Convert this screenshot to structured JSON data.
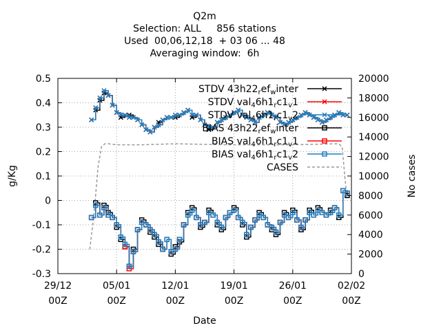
{
  "chart_data": {
    "type": "line",
    "title_lines": [
      "Q2m",
      "Selection: ALL     856 stations",
      "Used  00,06,12,18  + 03 06 ... 48",
      "Averaging window:  6h"
    ],
    "xlabel": "Date",
    "ylabel": "g/Kg",
    "y2label": "No cases",
    "x_ticks": [
      {
        "date": "29/12",
        "hour": "00Z",
        "day": 0
      },
      {
        "date": "05/01",
        "hour": "00Z",
        "day": 7
      },
      {
        "date": "12/01",
        "hour": "00Z",
        "day": 14
      },
      {
        "date": "19/01",
        "hour": "00Z",
        "day": 21
      },
      {
        "date": "26/01",
        "hour": "00Z",
        "day": 28
      },
      {
        "date": "02/02",
        "hour": "00Z",
        "day": 35
      }
    ],
    "xlim_days": [
      0,
      35
    ],
    "ylim": [
      -0.3,
      0.5
    ],
    "y_ticks": [
      "-0.3",
      "-0.2",
      "-0.1",
      "0",
      "0.1",
      "0.2",
      "0.3",
      "0.4",
      "0.5"
    ],
    "y2lim": [
      0,
      20000
    ],
    "y2_ticks": [
      "0",
      "2000",
      "4000",
      "6000",
      "8000",
      "10000",
      "12000",
      "14000",
      "16000",
      "18000",
      "20000"
    ],
    "grid": true,
    "legend_position": "top-right",
    "x_days": [
      4,
      4.5,
      5,
      5.5,
      6,
      6.5,
      7,
      7.5,
      8,
      8.5,
      9,
      9.5,
      10,
      10.5,
      11,
      11.5,
      12,
      12.5,
      13,
      13.5,
      14,
      14.5,
      15,
      15.5,
      16,
      16.5,
      17,
      17.5,
      18,
      18.5,
      19,
      19.5,
      20,
      20.5,
      21,
      21.5,
      22,
      22.5,
      23,
      23.5,
      24,
      24.5,
      25,
      25.5,
      26,
      26.5,
      27,
      27.5,
      28,
      28.5,
      29,
      29.5,
      30,
      30.5,
      31,
      31.5,
      32,
      32.5,
      33,
      33.5,
      34,
      34.5
    ],
    "series": [
      {
        "name": "STDV 43h22_ref_winter",
        "axis": "y",
        "color": "#000000",
        "marker": "x",
        "values": [
          0.33,
          0.37,
          0.41,
          0.44,
          0.43,
          0.39,
          0.36,
          0.34,
          0.35,
          0.35,
          0.34,
          0.33,
          0.31,
          0.29,
          0.28,
          0.3,
          0.32,
          0.33,
          0.34,
          0.34,
          0.34,
          0.35,
          0.36,
          0.37,
          0.34,
          0.35,
          0.33,
          0.31,
          0.29,
          0.3,
          0.32,
          0.33,
          0.34,
          0.35,
          0.36,
          0.37,
          0.35,
          0.34,
          0.33,
          0.32,
          0.34,
          0.35,
          0.36,
          0.35,
          0.34,
          0.32,
          0.31,
          0.32,
          0.33,
          0.34,
          0.35,
          0.36,
          0.35,
          0.34,
          0.33,
          0.32,
          0.33,
          0.34,
          0.35,
          0.36,
          0.35,
          0.35
        ]
      },
      {
        "name": "STDV val_46h1_rc1_v1",
        "axis": "y",
        "color": "#ff0000",
        "marker": "x",
        "values": [
          0.33,
          0.38,
          0.42,
          0.45,
          0.43,
          0.39,
          0.36,
          0.35,
          0.35,
          0.34,
          0.34,
          0.33,
          0.31,
          0.29,
          0.28,
          0.3,
          0.31,
          0.33,
          0.34,
          0.34,
          0.35,
          0.35,
          0.36,
          0.37,
          0.35,
          0.35,
          0.33,
          0.31,
          0.3,
          0.3,
          0.32,
          0.33,
          0.34,
          0.35,
          0.36,
          0.37,
          0.35,
          0.34,
          0.33,
          0.32,
          0.34,
          0.35,
          0.36,
          0.35,
          0.34,
          0.32,
          0.31,
          0.32,
          0.33,
          0.34,
          0.35,
          0.36,
          0.35,
          0.34,
          0.33,
          0.32,
          0.33,
          0.34,
          0.35,
          0.36,
          0.35,
          0.35
        ]
      },
      {
        "name": "STDV val_46h1_rc1_v2",
        "axis": "y",
        "color": "#1c7fc0",
        "marker": "x",
        "values": [
          0.33,
          0.38,
          0.42,
          0.45,
          0.43,
          0.39,
          0.36,
          0.35,
          0.35,
          0.34,
          0.34,
          0.33,
          0.31,
          0.29,
          0.28,
          0.3,
          0.31,
          0.33,
          0.34,
          0.34,
          0.35,
          0.35,
          0.36,
          0.37,
          0.35,
          0.35,
          0.33,
          0.31,
          0.3,
          0.3,
          0.32,
          0.33,
          0.34,
          0.35,
          0.36,
          0.37,
          0.35,
          0.34,
          0.33,
          0.32,
          0.34,
          0.35,
          0.36,
          0.35,
          0.34,
          0.32,
          0.31,
          0.32,
          0.33,
          0.34,
          0.35,
          0.36,
          0.35,
          0.34,
          0.33,
          0.32,
          0.33,
          0.34,
          0.35,
          0.36,
          0.35,
          0.35
        ]
      },
      {
        "name": "BIAS 43h22_ref_winter",
        "axis": "y",
        "color": "#000000",
        "marker": "square",
        "values": [
          -0.07,
          -0.01,
          -0.06,
          -0.02,
          -0.05,
          -0.07,
          -0.11,
          -0.16,
          -0.19,
          -0.27,
          -0.2,
          -0.12,
          -0.08,
          -0.1,
          -0.13,
          -0.15,
          -0.18,
          -0.2,
          -0.16,
          -0.22,
          -0.19,
          -0.17,
          -0.1,
          -0.05,
          -0.03,
          -0.07,
          -0.11,
          -0.09,
          -0.04,
          -0.06,
          -0.1,
          -0.12,
          -0.07,
          -0.05,
          -0.03,
          -0.07,
          -0.1,
          -0.15,
          -0.11,
          -0.08,
          -0.05,
          -0.07,
          -0.1,
          -0.12,
          -0.14,
          -0.09,
          -0.05,
          -0.07,
          -0.04,
          -0.08,
          -0.12,
          -0.08,
          -0.04,
          -0.06,
          -0.03,
          -0.05,
          -0.06,
          -0.04,
          -0.03,
          -0.07,
          0.04,
          0.02
        ]
      },
      {
        "name": "BIAS val_46h1_rc1_v1",
        "axis": "y",
        "color": "#ff0000",
        "marker": "square",
        "values": [
          -0.07,
          -0.02,
          -0.06,
          -0.03,
          -0.06,
          -0.07,
          -0.1,
          -0.15,
          -0.19,
          -0.28,
          -0.21,
          -0.12,
          -0.09,
          -0.1,
          -0.12,
          -0.14,
          -0.17,
          -0.2,
          -0.16,
          -0.21,
          -0.2,
          -0.16,
          -0.1,
          -0.06,
          -0.04,
          -0.07,
          -0.1,
          -0.09,
          -0.05,
          -0.06,
          -0.09,
          -0.11,
          -0.07,
          -0.05,
          -0.04,
          -0.07,
          -0.09,
          -0.14,
          -0.11,
          -0.08,
          -0.06,
          -0.07,
          -0.1,
          -0.11,
          -0.13,
          -0.09,
          -0.06,
          -0.07,
          -0.05,
          -0.08,
          -0.11,
          -0.08,
          -0.05,
          -0.06,
          -0.04,
          -0.05,
          -0.06,
          -0.05,
          -0.03,
          -0.06,
          0.04,
          0.03
        ]
      },
      {
        "name": "BIAS val_46h1_rc1_v2",
        "axis": "y",
        "color": "#1c7fc0",
        "marker": "square",
        "values": [
          -0.07,
          -0.02,
          -0.06,
          -0.03,
          -0.06,
          -0.07,
          -0.1,
          -0.15,
          -0.18,
          -0.27,
          -0.21,
          -0.12,
          -0.09,
          -0.1,
          -0.12,
          -0.14,
          -0.17,
          -0.2,
          -0.16,
          -0.21,
          -0.2,
          -0.16,
          -0.1,
          -0.06,
          -0.04,
          -0.07,
          -0.1,
          -0.09,
          -0.05,
          -0.06,
          -0.09,
          -0.11,
          -0.07,
          -0.05,
          -0.04,
          -0.07,
          -0.09,
          -0.14,
          -0.11,
          -0.08,
          -0.06,
          -0.07,
          -0.1,
          -0.11,
          -0.13,
          -0.09,
          -0.06,
          -0.07,
          -0.05,
          -0.08,
          -0.11,
          -0.08,
          -0.05,
          -0.06,
          -0.04,
          -0.05,
          -0.06,
          -0.05,
          -0.03,
          -0.06,
          0.04,
          0.03
        ]
      },
      {
        "name": "CASES",
        "axis": "y2",
        "color": "#999999",
        "marker": "none",
        "dash": true,
        "x_days": [
          3.8,
          4.3,
          4.8,
          5.2,
          5.6,
          6.0,
          7.0,
          10.0,
          14.0,
          20.0,
          28.0,
          33.5,
          33.9,
          34.2,
          34.5
        ],
        "values": [
          2500,
          6000,
          11000,
          13000,
          13300,
          13300,
          13200,
          13200,
          13300,
          13200,
          13200,
          13300,
          13000,
          10000,
          7500
        ]
      }
    ]
  }
}
